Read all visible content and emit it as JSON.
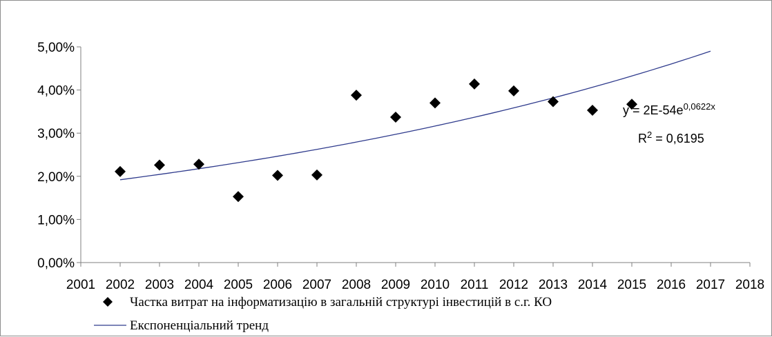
{
  "chart_data": {
    "type": "scatter",
    "title": "",
    "xlabel": "",
    "ylabel": "",
    "xlim": [
      2001,
      2018
    ],
    "ylim": [
      0,
      0.05
    ],
    "x_ticks": [
      "2001",
      "2002",
      "2003",
      "2004",
      "2005",
      "2006",
      "2007",
      "2008",
      "2009",
      "2010",
      "2011",
      "2012",
      "2013",
      "2014",
      "2015",
      "2016",
      "2017",
      "2018"
    ],
    "y_ticks": [
      "0,00%",
      "1,00%",
      "2,00%",
      "3,00%",
      "4,00%",
      "5,00%"
    ],
    "grid": false,
    "legend_position": "bottom",
    "series": [
      {
        "name": "Частка витрат на інформатизацію  в загальній  структурі інвестицій в с.г. КО",
        "marker": "diamond",
        "color": "#000000",
        "x": [
          2002,
          2003,
          2004,
          2005,
          2006,
          2007,
          2008,
          2009,
          2010,
          2011,
          2012,
          2013,
          2014,
          2015
        ],
        "y": [
          0.0211,
          0.0226,
          0.0228,
          0.0153,
          0.0202,
          0.0203,
          0.0388,
          0.0337,
          0.037,
          0.0414,
          0.0398,
          0.0373,
          0.0353,
          0.0367
        ]
      },
      {
        "name": "Експоненціальний тренд",
        "line": "trend",
        "color": "#2e3a8c",
        "x_range": [
          2002,
          2017
        ],
        "y_start": 0.0192,
        "y_end": 0.049
      }
    ],
    "annotations": {
      "equation_prefix": "y = 2E-54e",
      "equation_exponent": "0,0622x",
      "r2_prefix": "R",
      "r2_sup": "2",
      "r2_value": " = 0,6195"
    }
  }
}
